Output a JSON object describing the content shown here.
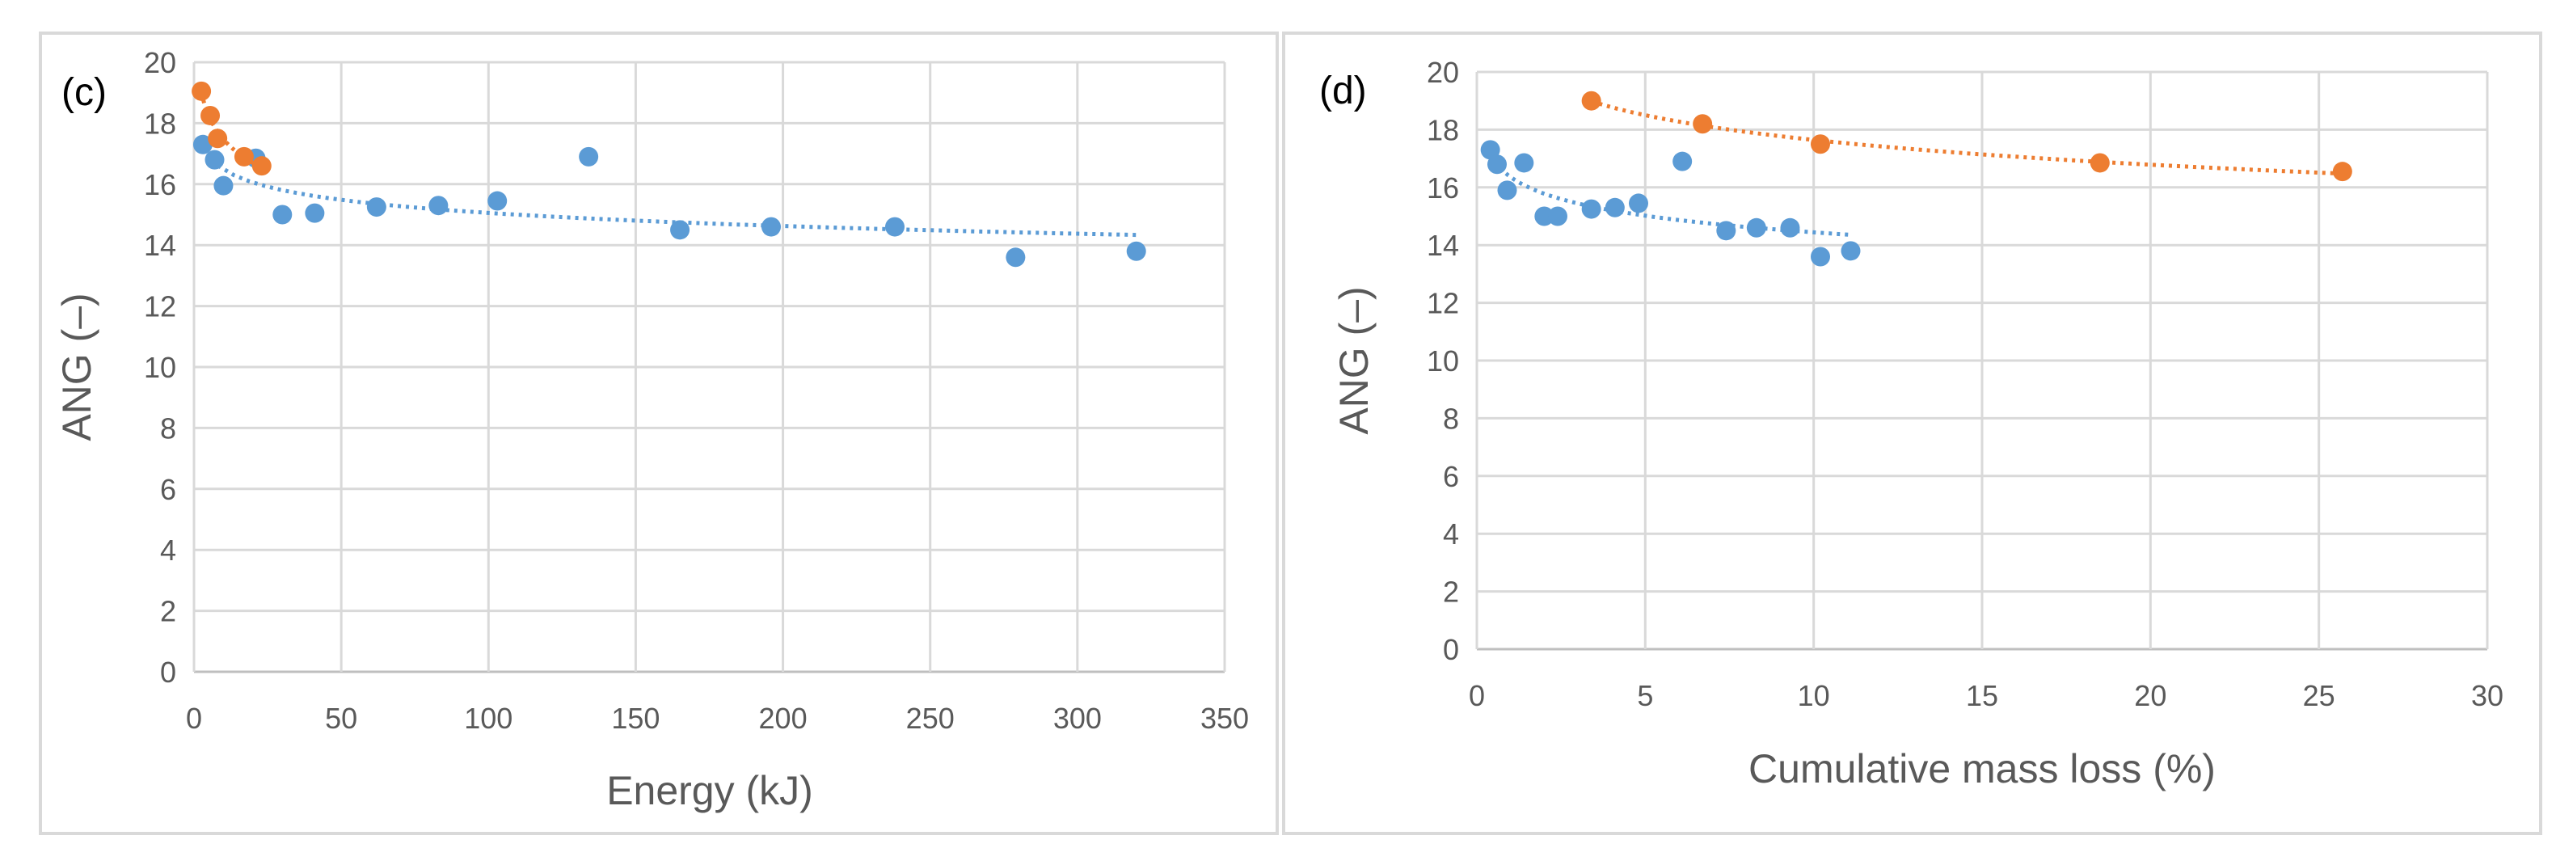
{
  "colors": {
    "series_blue": "#5B9BD5",
    "series_orange": "#ED7D31",
    "grid": "#D9D9D9",
    "text": "#595959"
  },
  "chart_data": [
    {
      "type": "scatter",
      "panel_label": "(c)",
      "xlabel": "Energy (kJ)",
      "ylabel": "ANG (–)",
      "xlim": [
        0,
        350
      ],
      "ylim": [
        0,
        20
      ],
      "xticks": [
        0,
        50,
        100,
        150,
        200,
        250,
        300,
        350
      ],
      "yticks": [
        0,
        2,
        4,
        6,
        8,
        10,
        12,
        14,
        16,
        18,
        20
      ],
      "grid": true,
      "trendline": "logarithmic, dotted",
      "series": [
        {
          "color": "#5B9BD5",
          "points": [
            [
              3,
              17.3
            ],
            [
              7,
              16.8
            ],
            [
              10,
              15.95
            ],
            [
              21,
              16.85
            ],
            [
              30,
              15.0
            ],
            [
              41,
              15.05
            ],
            [
              62,
              15.25
            ],
            [
              83,
              15.3
            ],
            [
              103,
              15.45
            ],
            [
              134,
              16.9
            ],
            [
              165,
              14.5
            ],
            [
              196,
              14.6
            ],
            [
              238,
              14.6
            ],
            [
              279,
              13.6
            ],
            [
              320,
              13.8
            ]
          ]
        },
        {
          "color": "#ED7D31",
          "points": [
            [
              2.5,
              19.05
            ],
            [
              5.5,
              18.25
            ],
            [
              8,
              17.5
            ],
            [
              17,
              16.9
            ],
            [
              23,
              16.6
            ]
          ]
        }
      ]
    },
    {
      "type": "scatter",
      "panel_label": "(d)",
      "xlabel": "Cumulative mass loss (%)",
      "ylabel": "ANG (–)",
      "xlim": [
        0,
        30
      ],
      "ylim": [
        0,
        20
      ],
      "xticks": [
        0,
        5,
        10,
        15,
        20,
        25,
        30
      ],
      "yticks": [
        0,
        2,
        4,
        6,
        8,
        10,
        12,
        14,
        16,
        18,
        20
      ],
      "grid": true,
      "trendline": "logarithmic, dotted",
      "series": [
        {
          "color": "#5B9BD5",
          "points": [
            [
              0.4,
              17.3
            ],
            [
              0.6,
              16.8
            ],
            [
              0.9,
              15.9
            ],
            [
              1.4,
              16.85
            ],
            [
              2.0,
              15.0
            ],
            [
              2.4,
              15.0
            ],
            [
              3.4,
              15.25
            ],
            [
              4.1,
              15.3
            ],
            [
              4.8,
              15.45
            ],
            [
              6.1,
              16.9
            ],
            [
              7.4,
              14.5
            ],
            [
              8.3,
              14.6
            ],
            [
              9.3,
              14.6
            ],
            [
              10.2,
              13.6
            ],
            [
              11.1,
              13.8
            ]
          ]
        },
        {
          "color": "#ED7D31",
          "points": [
            [
              3.4,
              19.0
            ],
            [
              6.7,
              18.2
            ],
            [
              10.2,
              17.5
            ],
            [
              18.5,
              16.85
            ],
            [
              25.7,
              16.55
            ]
          ]
        }
      ]
    }
  ]
}
